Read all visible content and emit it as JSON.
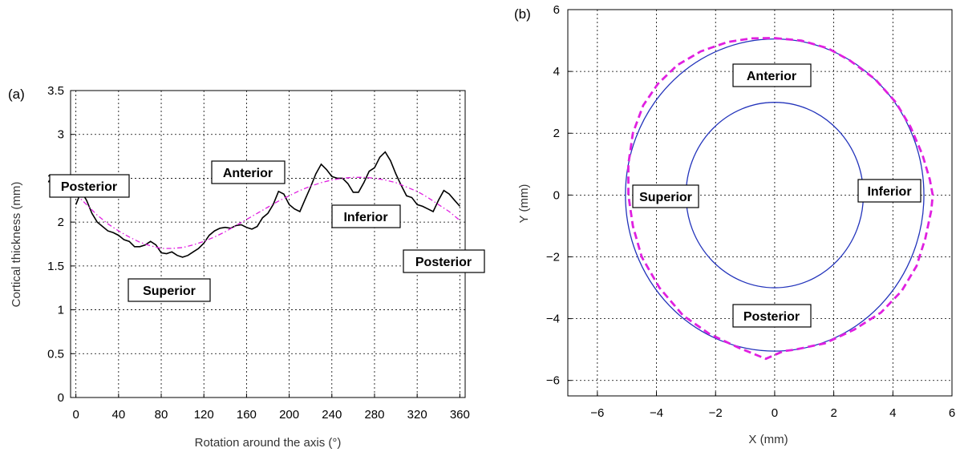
{
  "chart_data": [
    {
      "type": "line",
      "panel_label": "(a)",
      "xlabel": "Rotation around the axis (°)",
      "ylabel": "Cortical thickness (mm)",
      "xlim": [
        -5,
        365
      ],
      "ylim": [
        0,
        3.5
      ],
      "xticks": [
        0,
        40,
        80,
        120,
        160,
        200,
        240,
        280,
        320,
        360
      ],
      "yticks": [
        0,
        0.5,
        1,
        1.5,
        2,
        2.5,
        3,
        3.5
      ],
      "ytick_labels": [
        "0",
        "0.5",
        "1",
        "1.5",
        "2",
        "2.5",
        "3",
        "3.5"
      ],
      "grid": true,
      "series": [
        {
          "style": "solid",
          "color": "#000000",
          "x": [
            0,
            5,
            10,
            15,
            20,
            25,
            30,
            35,
            40,
            45,
            50,
            55,
            60,
            65,
            70,
            75,
            80,
            85,
            90,
            95,
            100,
            105,
            110,
            115,
            120,
            125,
            130,
            135,
            140,
            145,
            150,
            155,
            160,
            165,
            170,
            175,
            180,
            185,
            190,
            195,
            200,
            205,
            210,
            215,
            220,
            225,
            230,
            235,
            240,
            245,
            250,
            255,
            260,
            265,
            270,
            275,
            280,
            285,
            290,
            295,
            300,
            305,
            310,
            315,
            320,
            325,
            330,
            335,
            340,
            345,
            350,
            355,
            360
          ],
          "y": [
            2.2,
            2.35,
            2.25,
            2.1,
            2.0,
            1.95,
            1.9,
            1.88,
            1.85,
            1.8,
            1.78,
            1.72,
            1.72,
            1.74,
            1.78,
            1.74,
            1.65,
            1.64,
            1.66,
            1.62,
            1.6,
            1.62,
            1.66,
            1.7,
            1.76,
            1.85,
            1.9,
            1.93,
            1.94,
            1.93,
            1.96,
            1.97,
            1.94,
            1.92,
            1.95,
            2.05,
            2.1,
            2.2,
            2.35,
            2.32,
            2.2,
            2.15,
            2.12,
            2.26,
            2.4,
            2.55,
            2.66,
            2.6,
            2.52,
            2.5,
            2.5,
            2.44,
            2.34,
            2.34,
            2.45,
            2.58,
            2.62,
            2.74,
            2.8,
            2.7,
            2.55,
            2.42,
            2.3,
            2.28,
            2.2,
            2.18,
            2.15,
            2.12,
            2.25,
            2.36,
            2.32,
            2.25,
            2.18
          ]
        },
        {
          "style": "dash-dot",
          "color": "#e020e0",
          "x": [
            0,
            10,
            20,
            30,
            40,
            50,
            60,
            70,
            80,
            90,
            100,
            110,
            120,
            130,
            140,
            150,
            160,
            170,
            180,
            190,
            200,
            210,
            220,
            230,
            240,
            250,
            260,
            270,
            280,
            290,
            300,
            310,
            320,
            330,
            340,
            350,
            360
          ],
          "y": [
            2.32,
            2.2,
            2.08,
            1.98,
            1.9,
            1.83,
            1.77,
            1.73,
            1.7,
            1.7,
            1.71,
            1.74,
            1.78,
            1.83,
            1.89,
            1.96,
            2.03,
            2.1,
            2.17,
            2.24,
            2.3,
            2.36,
            2.41,
            2.45,
            2.48,
            2.5,
            2.51,
            2.51,
            2.5,
            2.48,
            2.45,
            2.4,
            2.35,
            2.28,
            2.2,
            2.12,
            2.02
          ]
        }
      ],
      "annotations": [
        "Posterior",
        "Anterior",
        "Inferior",
        "Posterior",
        "Superior"
      ]
    },
    {
      "type": "line",
      "panel_label": "(b)",
      "xlabel": "X (mm)",
      "ylabel": "Y (mm)",
      "xlim": [
        -7,
        6
      ],
      "ylim": [
        -6.5,
        6
      ],
      "xticks": [
        -6,
        -4,
        -2,
        0,
        2,
        4,
        6
      ],
      "yticks": [
        -6,
        -4,
        -2,
        0,
        2,
        4,
        6
      ],
      "xtick_labels": [
        "−6",
        "−4",
        "−2",
        "0",
        "2",
        "4",
        "6"
      ],
      "ytick_labels": [
        "−6",
        "−4",
        "−2",
        "0",
        "2",
        "4",
        "6"
      ],
      "grid": true,
      "series": [
        {
          "shape": "circle",
          "style": "solid",
          "color": "#2233bb",
          "center": [
            0,
            0
          ],
          "radius": 5.05
        },
        {
          "shape": "circle",
          "style": "solid",
          "color": "#2233bb",
          "center": [
            0,
            0
          ],
          "radius": 3.0
        },
        {
          "shape": "closed-curve",
          "style": "dashed",
          "color": "#e020e0",
          "x": [
            0.0,
            0.9,
            1.8,
            2.55,
            3.4,
            4.1,
            4.6,
            5.0,
            5.25,
            5.35,
            5.3,
            5.1,
            4.8,
            4.3,
            3.6,
            2.7,
            1.7,
            0.7,
            0.3,
            -0.3,
            -1.2,
            -2.2,
            -3.1,
            -3.9,
            -4.5,
            -4.8,
            -4.95,
            -4.95,
            -4.8,
            -4.45,
            -3.95,
            -3.3,
            -2.5,
            -1.6,
            -0.8,
            0.0
          ],
          "y": [
            5.08,
            5.0,
            4.75,
            4.35,
            3.75,
            3.0,
            2.2,
            1.3,
            0.5,
            0.0,
            -0.5,
            -1.4,
            -2.3,
            -3.1,
            -3.8,
            -4.35,
            -4.8,
            -5.0,
            -5.05,
            -5.3,
            -4.95,
            -4.5,
            -3.9,
            -3.0,
            -2.0,
            -1.0,
            0.0,
            1.0,
            2.0,
            2.9,
            3.6,
            4.2,
            4.65,
            4.95,
            5.07,
            5.08
          ]
        }
      ],
      "annotations": [
        "Anterior",
        "Superior",
        "Inferior",
        "Posterior"
      ]
    }
  ]
}
